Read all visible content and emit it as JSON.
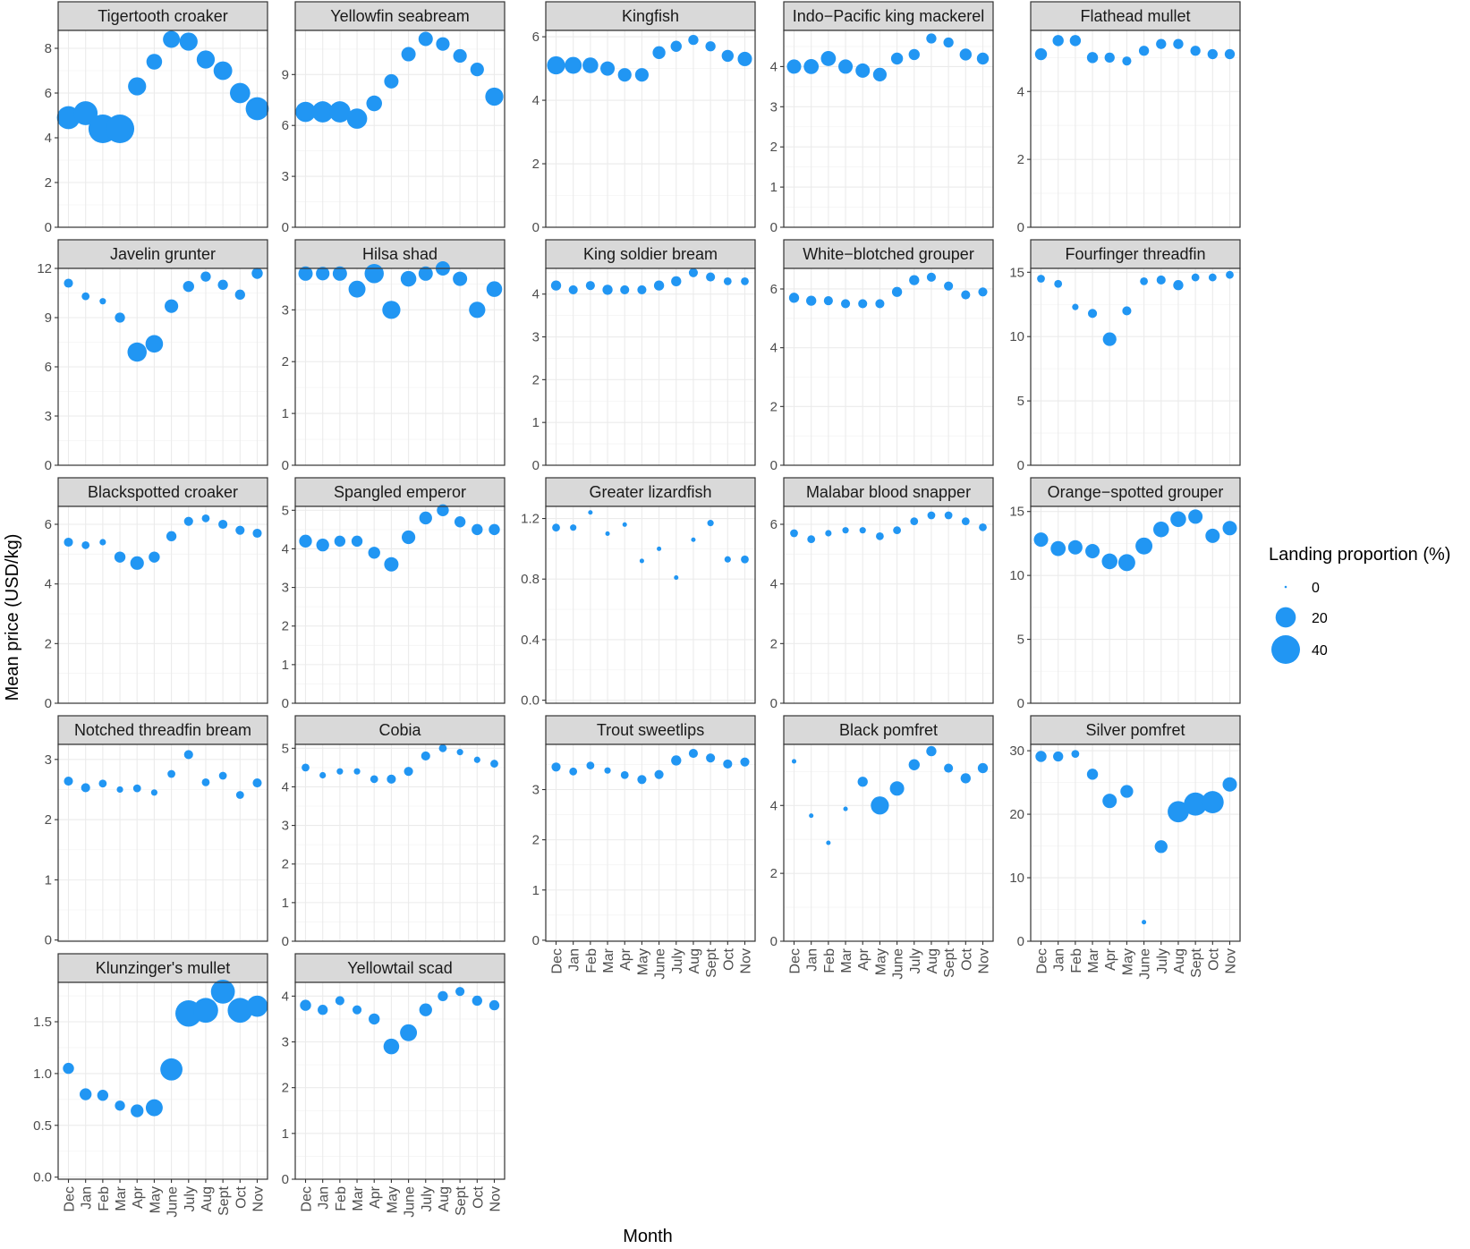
{
  "chart_data": {
    "type": "scatter",
    "xlabel": "Month",
    "ylabel": "Mean price (USD/kg)",
    "months": [
      "Dec",
      "Jan",
      "Feb",
      "Mar",
      "Apr",
      "May",
      "June",
      "July",
      "Aug",
      "Sept",
      "Oct",
      "Nov"
    ],
    "legend": {
      "title": "Landing proportion (%)",
      "placement": "right",
      "entries": [
        {
          "label": "0",
          "value": 0
        },
        {
          "label": "20",
          "value": 20
        },
        {
          "label": "40",
          "value": 40
        }
      ]
    },
    "point_color": "#2196F3",
    "size_max_value": 40,
    "panels": [
      {
        "title": "Tigertooth croaker",
        "ylim": [
          0,
          8.8
        ],
        "yticks": [
          0,
          2,
          4,
          6,
          8
        ],
        "yticklabels": [
          "0",
          "2",
          "4",
          "6",
          "8"
        ],
        "values": [
          4.9,
          5.1,
          4.4,
          4.4,
          6.3,
          7.4,
          8.4,
          8.3,
          7.5,
          7.0,
          6.0,
          5.3
        ],
        "landing": [
          26,
          28,
          40,
          40,
          16,
          12,
          14,
          16,
          16,
          17,
          20,
          26
        ]
      },
      {
        "title": "Yellowfin seabream",
        "ylim": [
          0,
          11.6
        ],
        "yticks": [
          0,
          3,
          6,
          9
        ],
        "yticklabels": [
          "0",
          "3",
          "6",
          "9"
        ],
        "values": [
          6.8,
          6.8,
          6.8,
          6.4,
          7.3,
          8.6,
          10.2,
          11.1,
          10.8,
          10.1,
          9.3,
          7.7
        ],
        "landing": [
          20,
          22,
          22,
          20,
          12,
          10,
          10,
          10,
          9,
          9,
          9,
          16
        ]
      },
      {
        "title": "Kingfish",
        "ylim": [
          0,
          6.2
        ],
        "yticks": [
          0,
          2,
          4,
          6
        ],
        "yticklabels": [
          "0",
          "2",
          "4",
          "6"
        ],
        "values": [
          5.1,
          5.1,
          5.1,
          5.0,
          4.8,
          4.8,
          5.5,
          5.7,
          5.9,
          5.7,
          5.4,
          5.3
        ],
        "landing": [
          16,
          14,
          12,
          10,
          9,
          9,
          8,
          6,
          5,
          5,
          7,
          10
        ]
      },
      {
        "title": "Indo−Pacific king mackerel",
        "ylim": [
          0,
          4.9
        ],
        "yticks": [
          0,
          1,
          2,
          3,
          4
        ],
        "yticklabels": [
          "0",
          "1",
          "2",
          "3",
          "4"
        ],
        "values": [
          4.0,
          4.0,
          4.2,
          4.0,
          3.9,
          3.8,
          4.2,
          4.3,
          4.7,
          4.6,
          4.3,
          4.2
        ],
        "landing": [
          10,
          11,
          11,
          10,
          10,
          9,
          7,
          6,
          5,
          5,
          7,
          7
        ]
      },
      {
        "title": "Flathead mullet",
        "ylim": [
          0,
          5.8
        ],
        "yticks": [
          0,
          2,
          4
        ],
        "yticklabels": [
          "0",
          "2",
          "4"
        ],
        "values": [
          5.1,
          5.5,
          5.5,
          5.0,
          5.0,
          4.9,
          5.2,
          5.4,
          5.4,
          5.2,
          5.1,
          5.1
        ],
        "landing": [
          7,
          6,
          6,
          6,
          5,
          4,
          5,
          5,
          5,
          5,
          5,
          5
        ]
      },
      {
        "title": "Javelin grunter",
        "ylim": [
          0,
          12.0
        ],
        "yticks": [
          0,
          3,
          6,
          9,
          12
        ],
        "yticklabels": [
          "0",
          "3",
          "6",
          "9",
          "12"
        ],
        "values": [
          11.1,
          10.3,
          10.0,
          9.0,
          6.9,
          7.4,
          9.7,
          10.9,
          11.5,
          11.0,
          10.4,
          11.7
        ],
        "landing": [
          4,
          3,
          2,
          5,
          18,
          15,
          9,
          6,
          5,
          5,
          5,
          6
        ]
      },
      {
        "title": "Hilsa shad",
        "ylim": [
          0,
          3.8
        ],
        "yticks": [
          0,
          1,
          2,
          3
        ],
        "yticklabels": [
          "0",
          "1",
          "2",
          "3"
        ],
        "values": [
          3.7,
          3.7,
          3.7,
          3.4,
          3.7,
          3.0,
          3.6,
          3.7,
          3.8,
          3.6,
          3.0,
          3.4
        ],
        "landing": [
          10,
          9,
          10,
          14,
          18,
          16,
          12,
          10,
          10,
          10,
          13,
          12
        ]
      },
      {
        "title": "King soldier bream",
        "ylim": [
          0,
          4.6
        ],
        "yticks": [
          0,
          1,
          2,
          3,
          4
        ],
        "yticklabels": [
          "0",
          "1",
          "2",
          "3",
          "4"
        ],
        "values": [
          4.2,
          4.1,
          4.2,
          4.1,
          4.1,
          4.1,
          4.2,
          4.3,
          4.5,
          4.4,
          4.3,
          4.3
        ],
        "landing": [
          5,
          4,
          4,
          5,
          4,
          4,
          5,
          5,
          4,
          4,
          3,
          3
        ]
      },
      {
        "title": "White−blotched grouper",
        "ylim": [
          0,
          6.7
        ],
        "yticks": [
          0,
          2,
          4,
          6
        ],
        "yticklabels": [
          "0",
          "2",
          "4",
          "6"
        ],
        "values": [
          5.7,
          5.6,
          5.6,
          5.5,
          5.5,
          5.5,
          5.9,
          6.3,
          6.4,
          6.1,
          5.8,
          5.9
        ],
        "landing": [
          5,
          5,
          4,
          4,
          4,
          4,
          5,
          5,
          4,
          4,
          4,
          4
        ]
      },
      {
        "title": "Fourfinger threadfin",
        "ylim": [
          0,
          15.3
        ],
        "yticks": [
          0,
          5,
          10,
          15
        ],
        "yticklabels": [
          "0",
          "5",
          "10",
          "15"
        ],
        "values": [
          14.5,
          14.1,
          12.3,
          11.8,
          9.8,
          12.0,
          14.3,
          14.4,
          14.0,
          14.6,
          14.6,
          14.8
        ],
        "landing": [
          3,
          3,
          2,
          4,
          9,
          4,
          3,
          4,
          5,
          3,
          3,
          3
        ]
      },
      {
        "title": "Blackspotted croaker",
        "ylim": [
          0,
          6.6
        ],
        "yticks": [
          0,
          2,
          4,
          6
        ],
        "yticklabels": [
          "0",
          "2",
          "4",
          "6"
        ],
        "values": [
          5.4,
          5.3,
          5.4,
          4.9,
          4.7,
          4.9,
          5.6,
          6.1,
          6.2,
          6.0,
          5.8,
          5.7
        ],
        "landing": [
          4,
          3,
          2,
          6,
          9,
          6,
          5,
          4,
          3,
          4,
          4,
          4
        ]
      },
      {
        "title": "Spangled emperor",
        "ylim": [
          0,
          5.1
        ],
        "yticks": [
          0,
          1,
          2,
          3,
          4,
          5
        ],
        "yticklabels": [
          "0",
          "1",
          "2",
          "3",
          "4",
          "5"
        ],
        "values": [
          4.2,
          4.1,
          4.2,
          4.2,
          3.9,
          3.6,
          4.3,
          4.8,
          5.0,
          4.7,
          4.5,
          4.5
        ],
        "landing": [
          8,
          8,
          6,
          6,
          7,
          10,
          9,
          8,
          7,
          6,
          6,
          6
        ]
      },
      {
        "title": "Greater lizardfish",
        "ylim": [
          -0.02,
          1.28
        ],
        "yticks": [
          0,
          0.4,
          0.8,
          1.2
        ],
        "yticklabels": [
          "0.0",
          "0.4",
          "0.8",
          "1.2"
        ],
        "values": [
          1.14,
          1.14,
          1.24,
          1.1,
          1.16,
          0.92,
          1.0,
          0.81,
          1.06,
          1.17,
          0.93,
          0.93
        ],
        "landing": [
          3,
          2,
          1,
          1,
          1,
          1,
          1,
          1,
          1,
          2,
          2,
          3
        ]
      },
      {
        "title": "Malabar blood snapper",
        "ylim": [
          0,
          6.6
        ],
        "yticks": [
          0,
          2,
          4,
          6
        ],
        "yticklabels": [
          "0",
          "2",
          "4",
          "6"
        ],
        "values": [
          5.7,
          5.5,
          5.7,
          5.8,
          5.8,
          5.6,
          5.8,
          6.1,
          6.3,
          6.3,
          6.1,
          5.9
        ],
        "landing": [
          3,
          3,
          2,
          2,
          2,
          3,
          3,
          3,
          3,
          3,
          3,
          3
        ]
      },
      {
        "title": "Orange−spotted grouper",
        "ylim": [
          0,
          15.4
        ],
        "yticks": [
          0,
          5,
          10,
          15
        ],
        "yticklabels": [
          "0",
          "5",
          "10",
          "15"
        ],
        "values": [
          12.8,
          12.1,
          12.2,
          11.9,
          11.1,
          11.0,
          12.3,
          13.6,
          14.4,
          14.6,
          13.1,
          13.7
        ],
        "landing": [
          10,
          11,
          10,
          10,
          12,
          14,
          14,
          12,
          12,
          10,
          10,
          10
        ]
      },
      {
        "title": "Notched threadfin bream",
        "ylim": [
          -0.02,
          3.25
        ],
        "yticks": [
          0,
          1,
          2,
          3
        ],
        "yticklabels": [
          "0",
          "1",
          "2",
          "3"
        ],
        "values": [
          2.64,
          2.53,
          2.6,
          2.5,
          2.52,
          2.45,
          2.76,
          3.08,
          2.62,
          2.73,
          2.41,
          2.61
        ],
        "landing": [
          4,
          4,
          3,
          2,
          3,
          2,
          3,
          4,
          3,
          3,
          3,
          4
        ]
      },
      {
        "title": "Cobia",
        "ylim": [
          0,
          5.1
        ],
        "yticks": [
          0,
          1,
          2,
          3,
          4,
          5
        ],
        "yticklabels": [
          "0",
          "1",
          "2",
          "3",
          "4",
          "5"
        ],
        "values": [
          4.5,
          4.3,
          4.4,
          4.4,
          4.2,
          4.2,
          4.4,
          4.8,
          5.0,
          4.9,
          4.7,
          4.6
        ],
        "landing": [
          3,
          2,
          2,
          2,
          3,
          4,
          4,
          4,
          3,
          2,
          2,
          3
        ]
      },
      {
        "title": "Trout sweetlips",
        "ylim": [
          -0.02,
          3.9
        ],
        "yticks": [
          0,
          1,
          2,
          3
        ],
        "yticklabels": [
          "0",
          "1",
          "2",
          "3"
        ],
        "values": [
          3.45,
          3.36,
          3.48,
          3.38,
          3.29,
          3.2,
          3.3,
          3.58,
          3.72,
          3.63,
          3.51,
          3.55
        ],
        "landing": [
          4,
          3,
          3,
          2,
          3,
          4,
          4,
          5,
          4,
          4,
          4,
          4
        ]
      },
      {
        "title": "Black pomfret",
        "ylim": [
          0,
          5.8
        ],
        "yticks": [
          0,
          2,
          4
        ],
        "yticklabels": [
          "0",
          "2",
          "4"
        ],
        "values": [
          5.3,
          3.7,
          2.9,
          3.9,
          4.7,
          4.0,
          4.5,
          5.2,
          5.6,
          5.1,
          4.8,
          5.1
        ],
        "landing": [
          1,
          1,
          1,
          1,
          5,
          16,
          10,
          6,
          5,
          4,
          5,
          5
        ]
      },
      {
        "title": "Silver pomfret",
        "ylim": [
          0,
          31.0
        ],
        "yticks": [
          0,
          10,
          20,
          30
        ],
        "yticklabels": [
          "0",
          "10",
          "20",
          "30"
        ],
        "values": [
          29.1,
          29.1,
          29.5,
          26.3,
          22.1,
          23.6,
          3.0,
          14.9,
          20.4,
          21.6,
          21.9,
          24.7
        ],
        "landing": [
          6,
          5,
          3,
          6,
          10,
          8,
          1,
          8,
          22,
          26,
          24,
          10
        ]
      },
      {
        "title": "Klunzinger's mullet",
        "ylim": [
          -0.02,
          1.88
        ],
        "yticks": [
          0,
          0.5,
          1.0,
          1.5
        ],
        "yticklabels": [
          "0.0",
          "0.5",
          "1.0",
          "1.5"
        ],
        "values": [
          1.05,
          0.8,
          0.79,
          0.69,
          0.64,
          0.67,
          1.04,
          1.58,
          1.61,
          1.79,
          1.61,
          1.65
        ],
        "landing": [
          6,
          7,
          6,
          5,
          8,
          14,
          24,
          34,
          30,
          28,
          30,
          22
        ]
      },
      {
        "title": "Yellowtail scad",
        "ylim": [
          0,
          4.3
        ],
        "yticks": [
          0,
          1,
          2,
          3,
          4
        ],
        "yticklabels": [
          "0",
          "1",
          "2",
          "3",
          "4"
        ],
        "values": [
          3.8,
          3.7,
          3.9,
          3.7,
          3.5,
          2.9,
          3.2,
          3.7,
          4.0,
          4.1,
          3.9,
          3.8
        ],
        "landing": [
          6,
          5,
          4,
          4,
          6,
          12,
          14,
          8,
          5,
          4,
          5,
          5
        ]
      }
    ]
  }
}
